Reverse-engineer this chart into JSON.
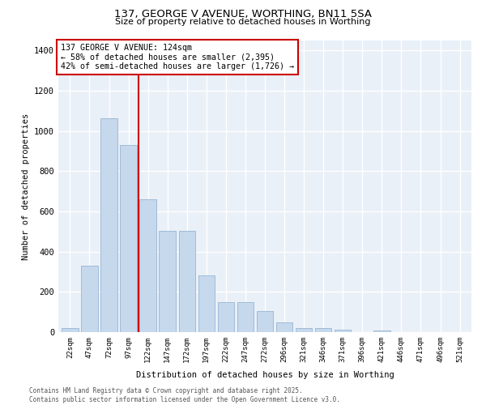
{
  "title": "137, GEORGE V AVENUE, WORTHING, BN11 5SA",
  "subtitle": "Size of property relative to detached houses in Worthing",
  "xlabel": "Distribution of detached houses by size in Worthing",
  "ylabel": "Number of detached properties",
  "bar_color": "#c5d8ec",
  "bar_edge_color": "#a0bcd8",
  "background_color": "#eaf0f8",
  "grid_color": "#ffffff",
  "categories": [
    "22sqm",
    "47sqm",
    "72sqm",
    "97sqm",
    "122sqm",
    "147sqm",
    "172sqm",
    "197sqm",
    "222sqm",
    "247sqm",
    "272sqm",
    "296sqm",
    "321sqm",
    "346sqm",
    "371sqm",
    "396sqm",
    "421sqm",
    "446sqm",
    "471sqm",
    "496sqm",
    "521sqm"
  ],
  "values": [
    20,
    330,
    1065,
    930,
    660,
    505,
    505,
    280,
    150,
    150,
    105,
    50,
    22,
    20,
    12,
    0,
    8,
    0,
    0,
    0,
    0
  ],
  "ylim": [
    0,
    1450
  ],
  "yticks": [
    0,
    200,
    400,
    600,
    800,
    1000,
    1200,
    1400
  ],
  "annotation_title": "137 GEORGE V AVENUE: 124sqm",
  "annotation_line1": "← 58% of detached houses are smaller (2,395)",
  "annotation_line2": "42% of semi-detached houses are larger (1,726) →",
  "annotation_color": "#cc0000",
  "red_line_index": 4,
  "footer_line1": "Contains HM Land Registry data © Crown copyright and database right 2025.",
  "footer_line2": "Contains public sector information licensed under the Open Government Licence v3.0."
}
